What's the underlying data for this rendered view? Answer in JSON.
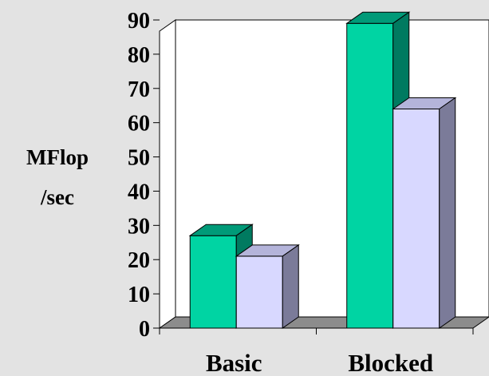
{
  "chart_data": {
    "type": "bar",
    "categories": [
      "Basic",
      "Blocked"
    ],
    "series": [
      {
        "values": [
          27,
          89
        ],
        "color": "#00d4a3",
        "top_color": "#009a78",
        "side_color": "#007a60"
      },
      {
        "values": [
          21,
          64
        ],
        "color": "#d8d8ff",
        "top_color": "#b4b4da",
        "side_color": "#7b7b99"
      }
    ],
    "ylabel_lines": [
      "MFlop",
      "/sec"
    ],
    "yticks": [
      "0",
      "10",
      "20",
      "30",
      "40",
      "50",
      "60",
      "70",
      "80",
      "90"
    ],
    "ylim": [
      0,
      90
    ],
    "style": "3d",
    "grid": false,
    "legend": "none",
    "floor_color": "#8c8c8c",
    "wall_color": "#ffffff"
  }
}
